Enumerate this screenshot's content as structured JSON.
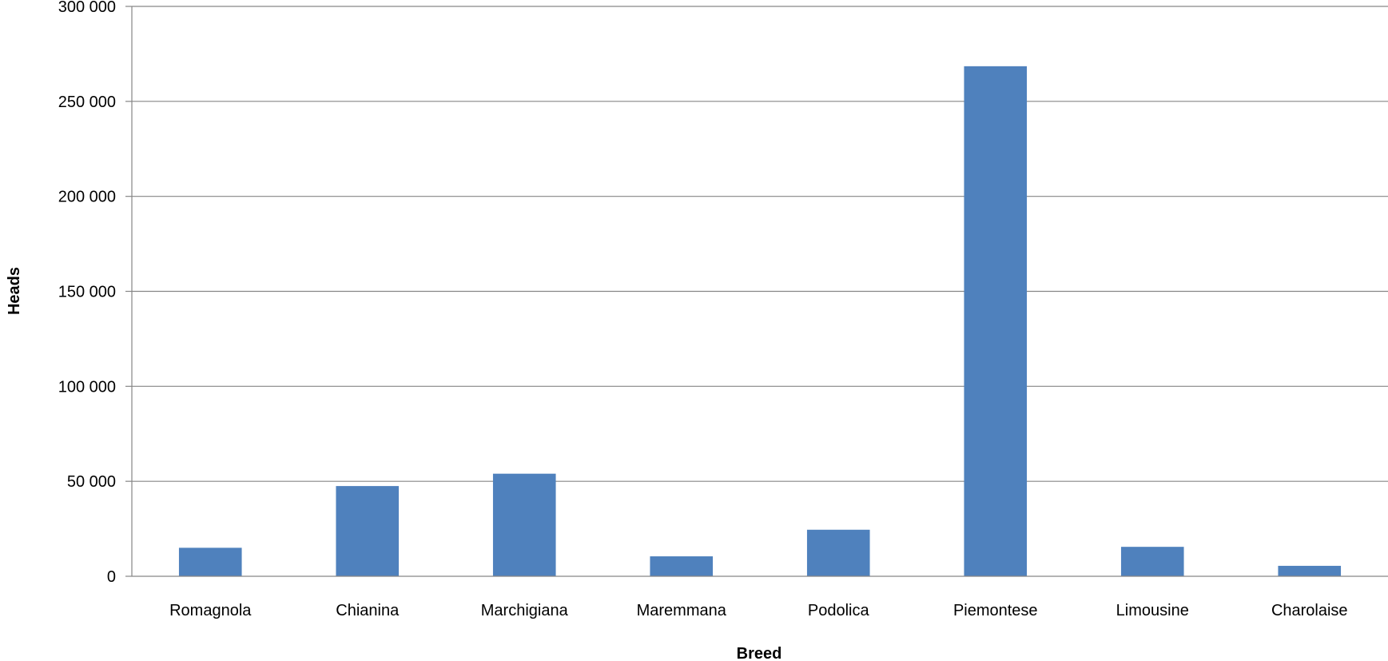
{
  "chart_data": {
    "type": "bar",
    "title": "",
    "xlabel": "Breed",
    "ylabel": "Heads",
    "categories": [
      "Romagnola",
      "Chianina",
      "Marchigiana",
      "Maremmana",
      "Podolica",
      "Piemontese",
      "Limousine",
      "Charolaise"
    ],
    "values": [
      15000,
      47500,
      54000,
      10500,
      24500,
      268500,
      15500,
      5500
    ],
    "ylim": [
      0,
      300000
    ],
    "yticks": [
      0,
      50000,
      100000,
      150000,
      200000,
      250000,
      300000
    ],
    "ytick_labels": [
      "0",
      "50 000",
      "100 000",
      "150 000",
      "200 000",
      "250 000",
      "300 000"
    ],
    "grid": true,
    "legend": "none",
    "bar_color": "#4F81BD"
  }
}
